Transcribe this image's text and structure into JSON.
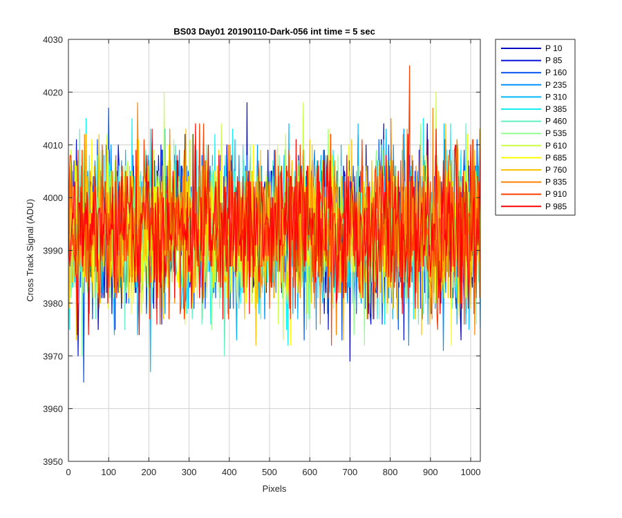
{
  "chart_data": {
    "type": "line",
    "title": "BS03 Day01 20190110-Dark-056 int time = 5 sec",
    "xlabel": "Pixels",
    "ylabel": "Cross Track Signal (ADU)",
    "xlim": [
      0,
      1024
    ],
    "ylim": [
      3950,
      4030
    ],
    "xticks": [
      0,
      100,
      200,
      300,
      400,
      500,
      600,
      700,
      800,
      900,
      1000
    ],
    "yticks": [
      3950,
      3960,
      3970,
      3980,
      3990,
      4000,
      4010,
      4020,
      4030
    ],
    "grid": true,
    "legend_position": "outside-right",
    "series": [
      {
        "name": "P 10",
        "color": "#0000BF",
        "mean": 3994,
        "std": 7.2
      },
      {
        "name": "P 85",
        "color": "#0010D8",
        "mean": 3994,
        "std": 7.2
      },
      {
        "name": "P 160",
        "color": "#0050F0",
        "mean": 3994,
        "std": 7.2
      },
      {
        "name": "P 235",
        "color": "#0090FF",
        "mean": 3994,
        "std": 7.2
      },
      {
        "name": "P 310",
        "color": "#00B8FF",
        "mean": 3994,
        "std": 7.2
      },
      {
        "name": "P 385",
        "color": "#10F0F0",
        "mean": 3994,
        "std": 7.2
      },
      {
        "name": "P 460",
        "color": "#60F0C0",
        "mean": 3994,
        "std": 7.2
      },
      {
        "name": "P 535",
        "color": "#90FF90",
        "mean": 3994,
        "std": 7.2
      },
      {
        "name": "P 610",
        "color": "#C8FF40",
        "mean": 3994,
        "std": 7.2
      },
      {
        "name": "P 685",
        "color": "#FFFF00",
        "mean": 3994,
        "std": 7.2
      },
      {
        "name": "P 760",
        "color": "#FFC000",
        "mean": 3994,
        "std": 7.2
      },
      {
        "name": "P 835",
        "color": "#FF8000",
        "mean": 3994,
        "std": 7.2
      },
      {
        "name": "P 910",
        "color": "#FF4000",
        "mean": 3994,
        "std": 7.2
      },
      {
        "name": "P 985",
        "color": "#FF0000",
        "mean": 3994,
        "std": 7.2
      }
    ]
  }
}
